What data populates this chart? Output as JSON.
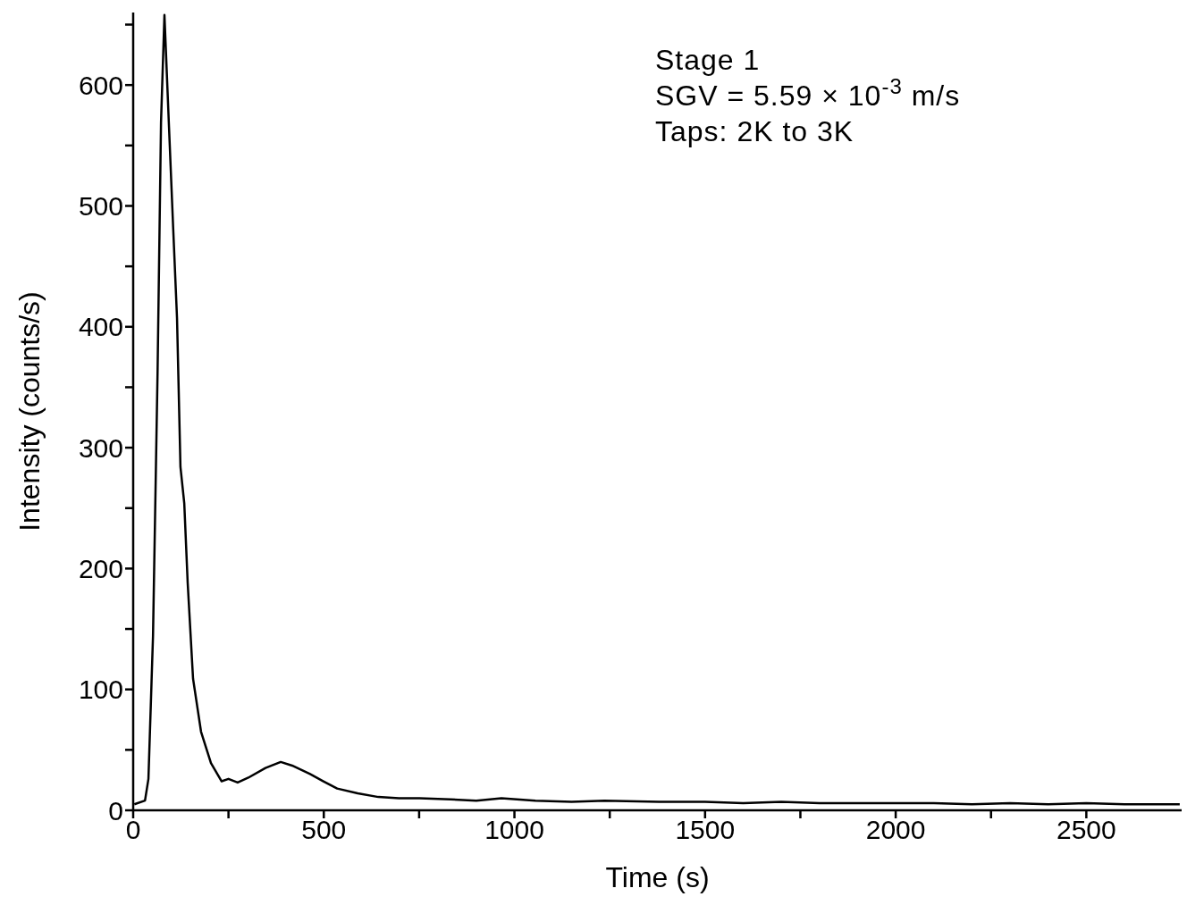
{
  "chart_data": {
    "type": "line",
    "xlabel": "Time (s)",
    "ylabel": "Intensity (counts/s)",
    "annotations": [
      "Stage 1",
      "SGV = 5.59 × 10$^{-3}$ m/s",
      "Taps: 2K to 3K"
    ],
    "xlim": [
      0,
      2750
    ],
    "xticks": [
      0,
      {
        "value": 250,
        "label": null
      },
      500,
      {
        "value": 750,
        "label": null
      },
      1000,
      {
        "value": 1250,
        "label": null
      },
      1500,
      {
        "value": 1750,
        "label": null
      },
      2000,
      {
        "value": 2250,
        "label": null
      },
      2500
    ],
    "ylim": [
      0,
      660
    ],
    "yticks": [
      0,
      {
        "value": 50,
        "label": null
      },
      100,
      {
        "value": 150,
        "label": null
      },
      200,
      {
        "value": 250,
        "label": null
      },
      300,
      {
        "value": 350,
        "label": null
      },
      400,
      {
        "value": 450,
        "label": null
      },
      500,
      {
        "value": 550,
        "label": null
      },
      600,
      {
        "value": 650,
        "label": null
      }
    ],
    "marker": "none",
    "line_style": "solid",
    "series": [
      {
        "color": "#000000",
        "x": [
          3,
          31,
          40,
          52,
          64,
          73,
          82,
          94,
          105,
          115,
          124,
          134,
          143,
          157,
          178,
          204,
          232,
          250,
          274,
          302,
          347,
          387,
          417,
          464,
          499,
          535,
          589,
          643,
          697,
          751,
          832,
          900,
          966,
          1055,
          1150,
          1236,
          1379,
          1500,
          1600,
          1700,
          1800,
          1900,
          2000,
          2100,
          2200,
          2300,
          2400,
          2500,
          2600,
          2700,
          2745
        ],
        "values": [
          5,
          8,
          26,
          144,
          363,
          569,
          658,
          565,
          481,
          407,
          284,
          254,
          188,
          109,
          65,
          39,
          24,
          26,
          23,
          27,
          35,
          40,
          37,
          30,
          24,
          18,
          14,
          11,
          10,
          10,
          9,
          8,
          10,
          8,
          7,
          8,
          7,
          7,
          6,
          7,
          6,
          6,
          6,
          6,
          5,
          6,
          5,
          6,
          5,
          5,
          5
        ]
      }
    ]
  }
}
